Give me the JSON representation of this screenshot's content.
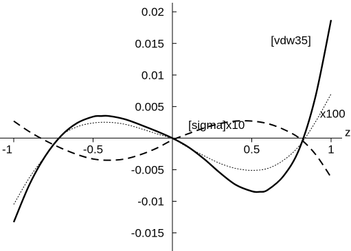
{
  "chart_data": {
    "type": "line",
    "title": "",
    "xlabel": "z",
    "ylabel": "",
    "xlim": [
      -1.0,
      1.0
    ],
    "ylim": [
      -0.017,
      0.021
    ],
    "grid": false,
    "x_ticks": [
      {
        "value": -1.0,
        "label": "-1"
      },
      {
        "value": -0.5,
        "label": "-0.5"
      },
      {
        "value": 0.5,
        "label": "0.5"
      },
      {
        "value": 1.0,
        "label": "1"
      }
    ],
    "y_ticks": [
      {
        "value": 0.02,
        "label": "0.02"
      },
      {
        "value": 0.015,
        "label": "0.015"
      },
      {
        "value": 0.01,
        "label": "0.01"
      },
      {
        "value": 0.005,
        "label": "0.005"
      },
      {
        "value": -0.005,
        "label": "-0.005"
      },
      {
        "value": -0.01,
        "label": "-0.01"
      },
      {
        "value": -0.015,
        "label": "-0.015"
      }
    ],
    "series": [
      {
        "style": "solid",
        "color": "#000000",
        "x": [
          -1.0,
          -0.9,
          -0.8,
          -0.7,
          -0.6,
          -0.5,
          -0.45,
          -0.4,
          -0.3,
          -0.2,
          -0.1,
          0.0,
          0.1,
          0.2,
          0.3,
          0.4,
          0.5,
          0.55,
          0.6,
          0.7,
          0.8,
          0.9,
          1.0
        ],
        "values": [
          -0.0133,
          -0.0073,
          -0.0028,
          0.0004,
          0.0024,
          0.0034,
          0.0035,
          0.0035,
          0.003,
          0.0021,
          0.0011,
          0.0,
          -0.0014,
          -0.0033,
          -0.0055,
          -0.0074,
          -0.0084,
          -0.0085,
          -0.0082,
          -0.006,
          -0.0017,
          0.0064,
          0.0187
        ]
      },
      {
        "style": "dotted",
        "color": "#000000",
        "x": [
          -1.0,
          -0.9,
          -0.8,
          -0.7,
          -0.6,
          -0.5,
          -0.4,
          -0.3,
          -0.2,
          -0.1,
          0.0,
          0.1,
          0.2,
          0.3,
          0.4,
          0.5,
          0.6,
          0.7,
          0.8,
          0.9,
          1.0
        ],
        "values": [
          -0.0105,
          -0.0062,
          -0.0028,
          0.0004,
          0.0018,
          0.0024,
          0.0025,
          0.0022,
          0.0015,
          0.0007,
          -0.0001,
          -0.0015,
          -0.0028,
          -0.004,
          -0.0048,
          -0.0051,
          -0.0048,
          -0.0035,
          -0.0012,
          0.0025,
          0.007
        ]
      },
      {
        "style": "dashed",
        "color": "#000000",
        "x": [
          -1.0,
          -0.9,
          -0.8,
          -0.7,
          -0.6,
          -0.5,
          -0.4,
          -0.3,
          -0.2,
          -0.1,
          0.0,
          0.1,
          0.2,
          0.3,
          0.4,
          0.5,
          0.6,
          0.7,
          0.8,
          0.9,
          1.0
        ],
        "values": [
          0.0027,
          0.001,
          -0.0004,
          -0.0016,
          -0.0026,
          -0.0033,
          -0.0035,
          -0.0033,
          -0.0026,
          -0.0016,
          -0.0003,
          0.0007,
          0.0016,
          0.0023,
          0.0027,
          0.0027,
          0.0023,
          0.0014,
          0.0,
          -0.0025,
          -0.0062
        ]
      }
    ],
    "annotations": [
      {
        "text": "[vdw35]",
        "x": 0.62,
        "y": 0.0155
      },
      {
        "text": "x100",
        "x": 0.93,
        "y": 0.0039
      },
      {
        "text": "[sigma]x10",
        "x": 0.1,
        "y": 0.0021
      }
    ]
  }
}
